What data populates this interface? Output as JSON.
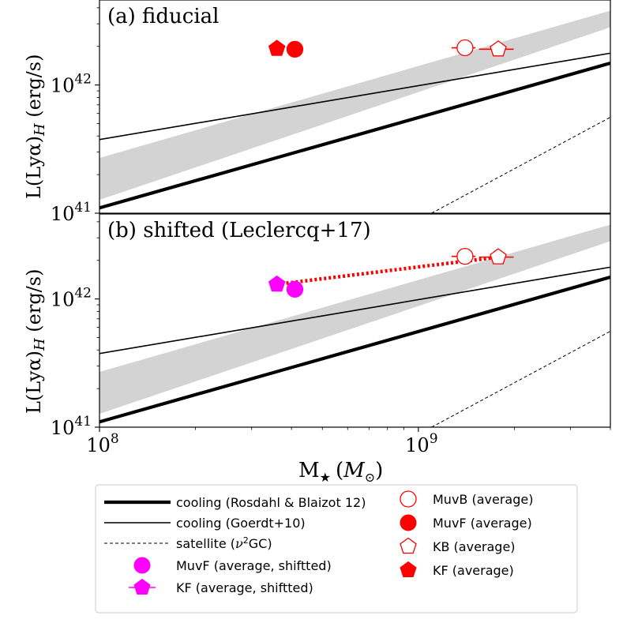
{
  "chart_data": {
    "type": "scatter",
    "x_label_main": "M",
    "x_label_sub": "★",
    "x_label_unit_open": "(",
    "x_label_unit": "M",
    "x_label_unit_sub": "⊙",
    "x_label_unit_close": ")",
    "x_scale": "log",
    "xlim": [
      100000000,
      4000000000
    ],
    "x_ticks": [
      {
        "value": 100000000,
        "base": "10",
        "exp": "8"
      },
      {
        "value": 1000000000,
        "base": "10",
        "exp": "9"
      }
    ],
    "y_scale": "log",
    "panels": [
      {
        "id": "a",
        "title": "(a) fiducial",
        "ylabel_main": "L(Lyα)",
        "ylabel_sub": "H",
        "ylabel_unit": " (erg/s)",
        "ylim": [
          1e+41,
          4.6e+42
        ],
        "y_ticks": [
          {
            "value": 1e+41,
            "base": "10",
            "exp": "41"
          },
          {
            "value": 1e+42,
            "base": "10",
            "exp": "42"
          }
        ],
        "band": {
          "x": [
            100000000,
            4000000000
          ],
          "lower": [
            1.27e+41,
            2.82e+42
          ],
          "upper": [
            2.7e+41,
            3.8e+42
          ]
        },
        "series": [
          {
            "name": "cooling (Rosdahl & Blaizot 12)",
            "style": "thick",
            "x": [
              100000000,
              4000000000
            ],
            "y": [
              1.1e+41,
              1.48e+42
            ]
          },
          {
            "name": "cooling (Goerdt+10)",
            "style": "thin",
            "x": [
              100000000,
              4000000000
            ],
            "y": [
              3.75e+41,
              1.77e+42
            ]
          },
          {
            "name": "satellite (ν²GC)",
            "style": "dashed",
            "x": [
              1100000000,
              4000000000
            ],
            "y": [
              1e+41,
              5.6e+41
            ]
          }
        ],
        "points": [
          {
            "name": "MuvB (average)",
            "marker": "circle",
            "fill": "open",
            "x": 1400000000,
            "y": 1.95e+42,
            "xerr": [
              1270000000,
              1510000000
            ]
          },
          {
            "name": "MuvF (average)",
            "marker": "circle",
            "fill": "filled",
            "x": 410000000,
            "y": 1.9e+42
          },
          {
            "name": "KB (average)",
            "marker": "pentagon",
            "fill": "open",
            "x": 1780000000,
            "y": 1.9e+42,
            "xerr": [
              1550000000,
              1990000000
            ]
          },
          {
            "name": "KF (average)",
            "marker": "pentagon",
            "fill": "filled",
            "x": 360000000,
            "y": 1.92e+42,
            "xerr": [
              345000000,
              375000000
            ]
          }
        ]
      },
      {
        "id": "b",
        "title": "(b) shifted (Leclercq+17)",
        "ylabel_main": "L(Lyα)",
        "ylabel_sub": "H",
        "ylabel_unit": " (erg/s)",
        "ylim": [
          1e+41,
          4.6e+42
        ],
        "y_ticks": [
          {
            "value": 1e+41,
            "base": "10",
            "exp": "41"
          },
          {
            "value": 1e+42,
            "base": "10",
            "exp": "42"
          }
        ],
        "band": {
          "x": [
            100000000,
            4000000000
          ],
          "lower": [
            1.27e+41,
            2.82e+42
          ],
          "upper": [
            2.7e+41,
            3.8e+42
          ]
        },
        "series": [
          {
            "name": "cooling (Rosdahl & Blaizot 12)",
            "style": "thick",
            "x": [
              100000000,
              4000000000
            ],
            "y": [
              1.1e+41,
              1.48e+42
            ]
          },
          {
            "name": "cooling (Goerdt+10)",
            "style": "thin",
            "x": [
              100000000,
              4000000000
            ],
            "y": [
              3.75e+41,
              1.77e+42
            ]
          },
          {
            "name": "satellite (ν²GC)",
            "style": "dashed",
            "x": [
              1100000000,
              4000000000
            ],
            "y": [
              1e+41,
              5.6e+41
            ]
          },
          {
            "name": "shifted trend",
            "style": "red-dotted",
            "x": [
              360000000,
              1780000000
            ],
            "y": [
              1.3e+42,
              2.12e+42
            ]
          }
        ],
        "points": [
          {
            "name": "MuvB (average)",
            "marker": "circle",
            "fill": "open",
            "x": 1400000000,
            "y": 2.15e+42,
            "xerr": [
              1270000000,
              1510000000
            ]
          },
          {
            "name": "KB (average)",
            "marker": "pentagon",
            "fill": "open",
            "x": 1780000000,
            "y": 2.12e+42,
            "xerr": [
              1550000000,
              1990000000
            ]
          },
          {
            "name": "MuvF (average, shiftted)",
            "marker": "circle",
            "fill": "magenta",
            "x": 410000000,
            "y": 1.19e+42
          },
          {
            "name": "KF (average, shiftted)",
            "marker": "pentagon",
            "fill": "magenta",
            "x": 360000000,
            "y": 1.3e+42,
            "xerr": [
              345000000,
              375000000
            ]
          }
        ]
      }
    ],
    "legend": {
      "placement": "bottom",
      "entries": [
        {
          "label": "cooling (Rosdahl & Blaizot 12)",
          "kind": "line-thick"
        },
        {
          "label": "cooling (Goerdt+10)",
          "kind": "line-thin"
        },
        {
          "label_pre": "satellite (",
          "label_nu": "ν",
          "label_sup": "2",
          "label_post": "GC)",
          "kind": "line-dashed"
        },
        {
          "label": "MuvF (average, shiftted)",
          "kind": "magenta-circle"
        },
        {
          "label": "KF (average, shiftted)",
          "kind": "magenta-pentagon"
        },
        {
          "label": "MuvB (average)",
          "kind": "open-circle"
        },
        {
          "label": "MuvF (average)",
          "kind": "filled-circle"
        },
        {
          "label": "KB (average)",
          "kind": "open-pentagon"
        },
        {
          "label": "KF (average)",
          "kind": "filled-pentagon"
        }
      ]
    },
    "colors": {
      "red": "#ff0000",
      "magenta": "#ff00ff",
      "band": "#d3d3d3",
      "black": "#000000"
    }
  }
}
